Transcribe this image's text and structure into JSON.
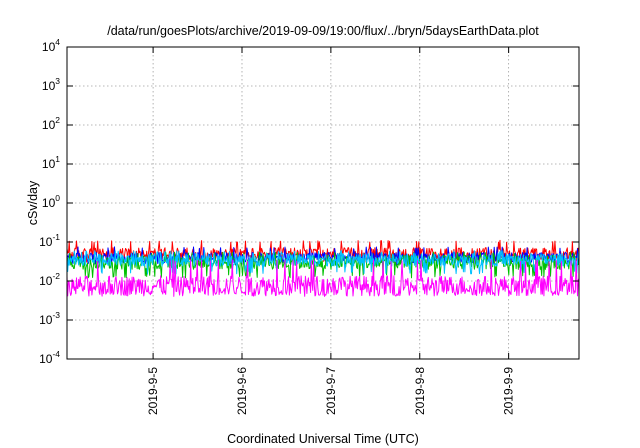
{
  "chart_data": {
    "type": "line",
    "title": "/data/run/goesPlots/archive/2019-09-09/19:00/flux/../bryn/5daysEarthData.plot",
    "xlabel": "Coordinated Universal Time (UTC)",
    "ylabel": "cSv/day",
    "yscale": "log",
    "ylim": [
      0.0001,
      10000
    ],
    "y_ticks": [
      {
        "value": 0.0001,
        "base": "10",
        "exp": "-4"
      },
      {
        "value": 0.001,
        "base": "10",
        "exp": "-3"
      },
      {
        "value": 0.01,
        "base": "10",
        "exp": "-2"
      },
      {
        "value": 0.1,
        "base": "10",
        "exp": "-1"
      },
      {
        "value": 1,
        "base": "10",
        "exp": "0"
      },
      {
        "value": 10,
        "base": "10",
        "exp": "1"
      },
      {
        "value": 100,
        "base": "10",
        "exp": "2"
      },
      {
        "value": 1000,
        "base": "10",
        "exp": "3"
      },
      {
        "value": 10000,
        "base": "10",
        "exp": "4"
      }
    ],
    "xlim": [
      "2019-09-04T00:45",
      "2019-09-09T19:00"
    ],
    "x_ticks": [
      {
        "date": "2019-09-05T00:00",
        "label": "2019-9-5"
      },
      {
        "date": "2019-09-06T00:00",
        "label": "2019-9-6"
      },
      {
        "date": "2019-09-07T00:00",
        "label": "2019-9-7"
      },
      {
        "date": "2019-09-08T00:00",
        "label": "2019-9-8"
      },
      {
        "date": "2019-09-09T00:00",
        "label": "2019-9-9"
      }
    ],
    "grid": true,
    "series": [
      {
        "color": "#ff0000",
        "median": 0.05,
        "min": 0.03,
        "max": 0.11
      },
      {
        "color": "#0000ff",
        "median": 0.04,
        "min": 0.025,
        "max": 0.075
      },
      {
        "color": "#00c000",
        "median": 0.03,
        "min": 0.012,
        "max": 0.055
      },
      {
        "color": "#00c0ff",
        "median": 0.035,
        "min": 0.015,
        "max": 0.06
      },
      {
        "color": "#ff00ff",
        "median": 0.0075,
        "min": 0.004,
        "max": 0.035
      }
    ]
  }
}
